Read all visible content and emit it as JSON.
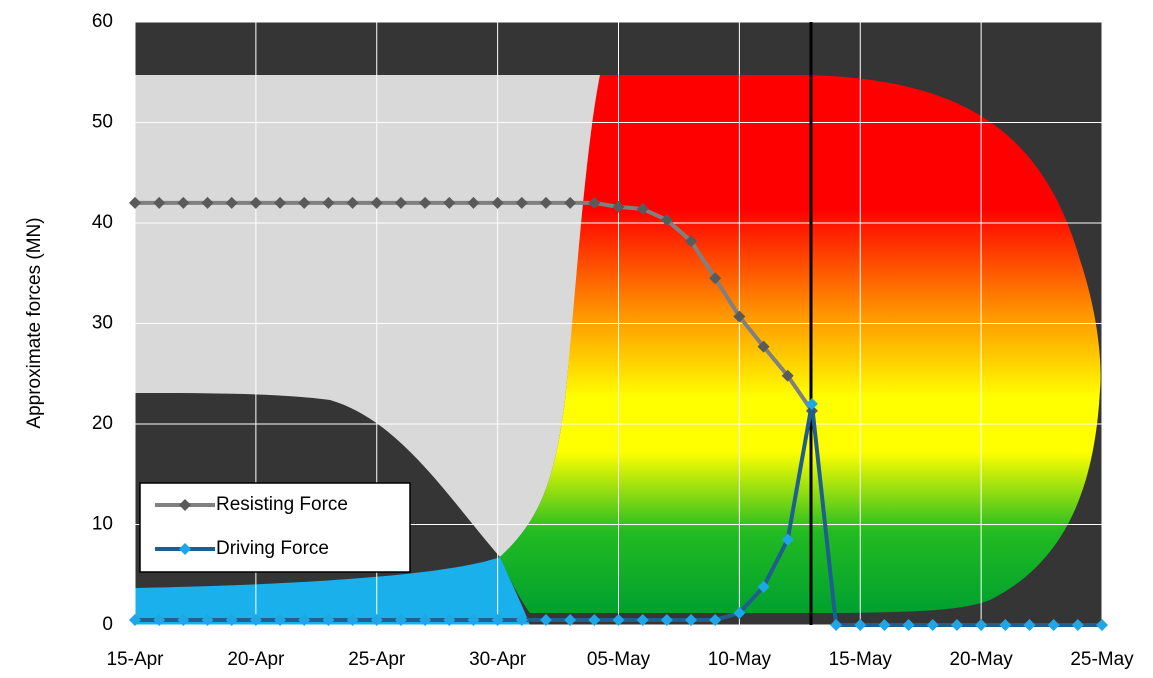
{
  "chart_data": {
    "type": "line",
    "y_label": "Approximate forces (MN)",
    "categories": [
      "15-Apr",
      null,
      null,
      null,
      null,
      "20-Apr",
      null,
      null,
      null,
      null,
      "25-Apr",
      null,
      null,
      null,
      null,
      "30-Apr",
      null,
      null,
      null,
      null,
      "05-May",
      null,
      null,
      null,
      null,
      "10-May",
      null,
      null,
      null,
      null,
      "15-May",
      null,
      null,
      null,
      null,
      "20-May",
      null,
      null,
      null,
      null,
      "25-May"
    ],
    "series": [
      {
        "name": "Resisting Force",
        "color": "#808080",
        "marker_color": "#5a5a5a",
        "values": [
          42,
          42,
          42,
          42,
          42,
          42,
          42,
          42,
          42,
          42,
          42,
          42,
          42,
          42,
          42,
          42,
          42,
          42,
          42,
          42,
          41.6,
          41.4,
          40.3,
          38.2,
          34.5,
          30.7,
          27.7,
          24.8,
          21.3,
          null,
          null,
          null,
          null,
          null,
          null,
          null,
          null,
          null,
          null,
          null,
          null
        ]
      },
      {
        "name": "Driving Force",
        "color": "#1f5f8f",
        "marker_color": "#1ea6e8",
        "values": [
          0.5,
          0.5,
          0.5,
          0.5,
          0.5,
          0.5,
          0.5,
          0.5,
          0.5,
          0.5,
          0.5,
          0.5,
          0.5,
          0.5,
          0.5,
          0.5,
          0.5,
          0.5,
          0.5,
          0.5,
          0.5,
          0.5,
          0.5,
          0.5,
          0.5,
          1.2,
          3.8,
          8.5,
          22,
          0,
          0,
          0,
          0,
          0,
          0,
          0,
          0,
          0,
          0,
          0,
          0
        ]
      }
    ],
    "ylim": [
      0,
      60
    ],
    "yticks": [
      0,
      10,
      20,
      30,
      40,
      50,
      60
    ],
    "grid": true
  }
}
